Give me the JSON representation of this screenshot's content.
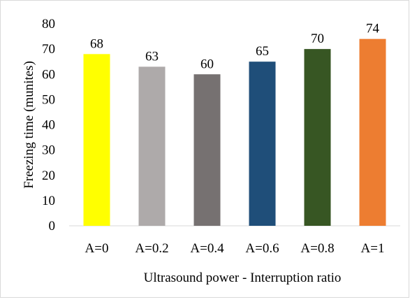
{
  "chart_data": {
    "type": "bar",
    "title": "",
    "xlabel": "Ultrasound power - Interruption ratio",
    "ylabel": "Freezing time (munites)",
    "categories": [
      "A=0",
      "A=0.2",
      "A=0.4",
      "A=0.6",
      "A=0.8",
      "A=1"
    ],
    "values": [
      68,
      63,
      60,
      65,
      70,
      74
    ],
    "data_labels": [
      "68",
      "63",
      "60",
      "65",
      "70",
      "74"
    ],
    "colors": [
      "#ffff00",
      "#aeaaaa",
      "#767171",
      "#1f4e79",
      "#375623",
      "#ed7d31"
    ],
    "ylim": [
      0,
      80
    ],
    "yticks": [
      "0",
      "10",
      "20",
      "30",
      "40",
      "50",
      "60",
      "70",
      "80"
    ],
    "grid": false,
    "legend": "none"
  }
}
